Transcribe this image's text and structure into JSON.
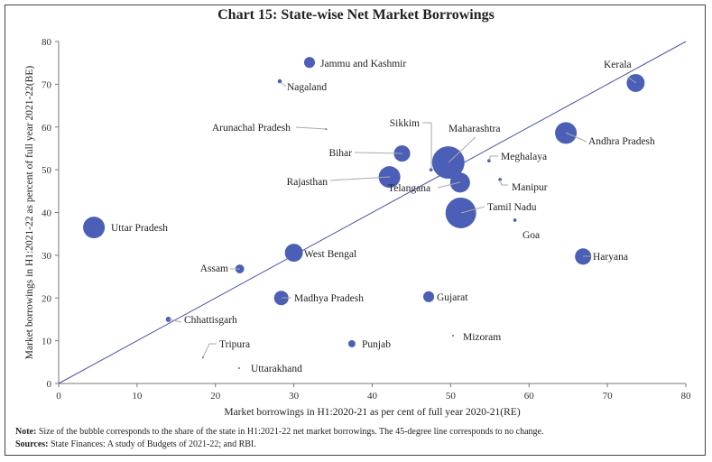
{
  "chart_data": {
    "type": "scatter",
    "subtype": "bubble",
    "title": "Chart 15: State-wise Net Market Borrowings",
    "xlabel": "Market borrowings in H1:2020-21 as per cent of full year 2020-21(RE)",
    "ylabel": "Market borrowings in H1:2021-22 as percent of full year 2021-22(BE)",
    "xlim": [
      0,
      80
    ],
    "ylim": [
      0,
      80
    ],
    "xticks": [
      0,
      10,
      20,
      30,
      40,
      50,
      60,
      70,
      80
    ],
    "yticks": [
      0,
      10,
      20,
      30,
      40,
      50,
      60,
      70,
      80
    ],
    "grid": false,
    "reference_line": {
      "type": "45-degree",
      "from": [
        0,
        0
      ],
      "to": [
        80,
        80
      ],
      "color": "#4a55a8"
    },
    "bubble_color": "#4a5fb5",
    "size_meaning": "share of the state in H1:2021-22 net market borrowings (approximate, relative)",
    "points": [
      {
        "label": "Jammu and Kashmir",
        "x": 32.0,
        "y": 75.1,
        "size": 2.1
      },
      {
        "label": "Nagaland",
        "x": 28.2,
        "y": 70.7,
        "size": 0.3
      },
      {
        "label": "Arunachal Pradesh",
        "x": 34.1,
        "y": 59.5,
        "size": 0.05
      },
      {
        "label": "Kerala",
        "x": 73.6,
        "y": 70.3,
        "size": 5.7
      },
      {
        "label": "Andhra Pradesh",
        "x": 64.7,
        "y": 58.6,
        "size": 8.3
      },
      {
        "label": "Sikkim",
        "x": 47.5,
        "y": 50.0,
        "size": 0.2
      },
      {
        "label": "Maharashtra",
        "x": 49.7,
        "y": 51.7,
        "size": 18.6
      },
      {
        "label": "Bihar",
        "x": 43.8,
        "y": 53.8,
        "size": 4.7
      },
      {
        "label": "Meghalaya",
        "x": 54.9,
        "y": 52.1,
        "size": 0.2
      },
      {
        "label": "Rajasthan",
        "x": 42.2,
        "y": 48.3,
        "size": 8.3
      },
      {
        "label": "Telangana",
        "x": 51.2,
        "y": 47.0,
        "size": 7.0
      },
      {
        "label": "Manipur",
        "x": 56.3,
        "y": 47.7,
        "size": 0.2
      },
      {
        "label": "Tamil Nadu",
        "x": 51.3,
        "y": 39.9,
        "size": 16.6
      },
      {
        "label": "Goa",
        "x": 58.2,
        "y": 38.2,
        "size": 0.2
      },
      {
        "label": "Uttar Pradesh",
        "x": 4.5,
        "y": 36.5,
        "size": 8.3
      },
      {
        "label": "West Bengal",
        "x": 30.0,
        "y": 30.6,
        "size": 5.7
      },
      {
        "label": "Haryana",
        "x": 66.9,
        "y": 29.7,
        "size": 4.7
      },
      {
        "label": "Assam",
        "x": 23.1,
        "y": 26.8,
        "size": 1.4
      },
      {
        "label": "Madhya Pradesh",
        "x": 28.4,
        "y": 20.0,
        "size": 3.7
      },
      {
        "label": "Gujarat",
        "x": 47.2,
        "y": 20.3,
        "size": 2.1
      },
      {
        "label": "Chhattisgarh",
        "x": 14.0,
        "y": 15.0,
        "size": 0.5
      },
      {
        "label": "Mizoram",
        "x": 50.3,
        "y": 11.2,
        "size": 0.05
      },
      {
        "label": "Punjab",
        "x": 37.4,
        "y": 9.3,
        "size": 0.9
      },
      {
        "label": "Tripura",
        "x": 18.4,
        "y": 6.1,
        "size": 0.05
      },
      {
        "label": "Uttarakhand",
        "x": 23.0,
        "y": 3.6,
        "size": 0.05
      }
    ]
  },
  "notes": {
    "note_label": "Note:",
    "note_text": " Size of the bubble corresponds to the share of the state in H1:2021-22 net market borrowings. The 45-degree line corresponds to no change.",
    "sources_label": "Sources:",
    "sources_text": " State Finances: A study of Budgets of 2021-22; and RBI."
  }
}
